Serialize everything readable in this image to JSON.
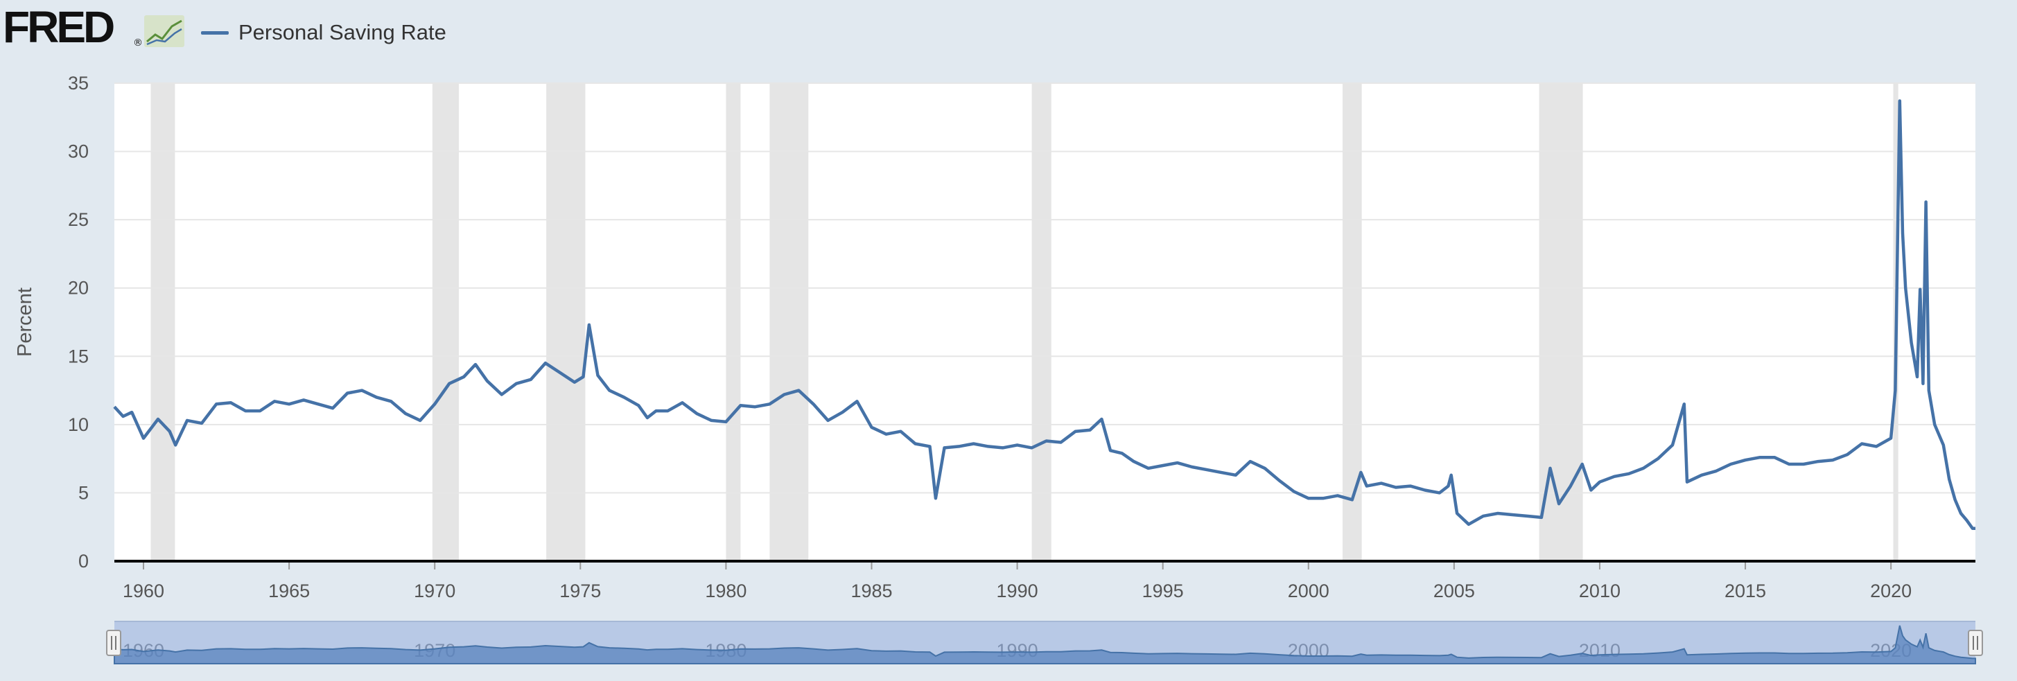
{
  "header": {
    "logo_text": "FRED",
    "logo_reg": "®",
    "logo_icon": "line-chart-logo-icon",
    "legend_label": "Personal Saving Rate"
  },
  "colors": {
    "series": "#4572a7",
    "recession": "#e5e5e5",
    "background": "#e1e9f0",
    "plot": "#ffffff",
    "navigator": "#b8c9e6"
  },
  "chart_data": {
    "type": "line",
    "title": "",
    "ylabel": "Percent",
    "xlabel": "",
    "x_range": [
      1959.0,
      2022.9
    ],
    "ylim": [
      0,
      35
    ],
    "y_ticks": [
      0,
      5,
      10,
      15,
      20,
      25,
      30,
      35
    ],
    "x_ticks": [
      1960,
      1965,
      1970,
      1975,
      1980,
      1985,
      1990,
      1995,
      2000,
      2005,
      2010,
      2015,
      2020
    ],
    "navigator_ticks": [
      1960,
      1970,
      1980,
      1990,
      2000,
      2010,
      2020
    ],
    "grid": true,
    "legend": "top-left",
    "recessions": [
      [
        1960.25,
        1961.08
      ],
      [
        1969.92,
        1970.83
      ],
      [
        1973.83,
        1975.17
      ],
      [
        1980.0,
        1980.5
      ],
      [
        1981.5,
        1982.83
      ],
      [
        1990.5,
        1991.17
      ],
      [
        2001.17,
        2001.83
      ],
      [
        2007.92,
        2009.42
      ],
      [
        2020.08,
        2020.25
      ]
    ],
    "series": [
      {
        "name": "Personal Saving Rate",
        "points": [
          [
            1959.0,
            11.3
          ],
          [
            1959.3,
            10.6
          ],
          [
            1959.6,
            10.9
          ],
          [
            1960.0,
            9.0
          ],
          [
            1960.5,
            10.4
          ],
          [
            1960.9,
            9.5
          ],
          [
            1961.1,
            8.5
          ],
          [
            1961.5,
            10.3
          ],
          [
            1962.0,
            10.1
          ],
          [
            1962.5,
            11.5
          ],
          [
            1963.0,
            11.6
          ],
          [
            1963.5,
            11.0
          ],
          [
            1964.0,
            11.0
          ],
          [
            1964.5,
            11.7
          ],
          [
            1965.0,
            11.5
          ],
          [
            1965.5,
            11.8
          ],
          [
            1966.0,
            11.5
          ],
          [
            1966.5,
            11.2
          ],
          [
            1967.0,
            12.3
          ],
          [
            1967.5,
            12.5
          ],
          [
            1968.0,
            12.0
          ],
          [
            1968.5,
            11.7
          ],
          [
            1969.0,
            10.8
          ],
          [
            1969.5,
            10.3
          ],
          [
            1970.0,
            11.5
          ],
          [
            1970.5,
            13.0
          ],
          [
            1971.0,
            13.5
          ],
          [
            1971.4,
            14.4
          ],
          [
            1971.8,
            13.2
          ],
          [
            1972.3,
            12.2
          ],
          [
            1972.8,
            13.0
          ],
          [
            1973.3,
            13.3
          ],
          [
            1973.8,
            14.5
          ],
          [
            1974.3,
            13.8
          ],
          [
            1974.8,
            13.1
          ],
          [
            1975.1,
            13.5
          ],
          [
            1975.3,
            17.3
          ],
          [
            1975.6,
            13.6
          ],
          [
            1976.0,
            12.5
          ],
          [
            1976.5,
            12.0
          ],
          [
            1977.0,
            11.4
          ],
          [
            1977.3,
            10.5
          ],
          [
            1977.6,
            11.0
          ],
          [
            1978.0,
            11.0
          ],
          [
            1978.5,
            11.6
          ],
          [
            1979.0,
            10.8
          ],
          [
            1979.5,
            10.3
          ],
          [
            1980.0,
            10.2
          ],
          [
            1980.5,
            11.4
          ],
          [
            1981.0,
            11.3
          ],
          [
            1981.5,
            11.5
          ],
          [
            1982.0,
            12.2
          ],
          [
            1982.5,
            12.5
          ],
          [
            1983.0,
            11.5
          ],
          [
            1983.5,
            10.3
          ],
          [
            1984.0,
            10.9
          ],
          [
            1984.5,
            11.7
          ],
          [
            1985.0,
            9.8
          ],
          [
            1985.5,
            9.3
          ],
          [
            1986.0,
            9.5
          ],
          [
            1986.5,
            8.6
          ],
          [
            1987.0,
            8.4
          ],
          [
            1987.2,
            4.6
          ],
          [
            1987.5,
            8.3
          ],
          [
            1988.0,
            8.4
          ],
          [
            1988.5,
            8.6
          ],
          [
            1989.0,
            8.4
          ],
          [
            1989.5,
            8.3
          ],
          [
            1990.0,
            8.5
          ],
          [
            1990.5,
            8.3
          ],
          [
            1991.0,
            8.8
          ],
          [
            1991.5,
            8.7
          ],
          [
            1992.0,
            9.5
          ],
          [
            1992.5,
            9.6
          ],
          [
            1992.9,
            10.4
          ],
          [
            1993.2,
            8.1
          ],
          [
            1993.6,
            7.9
          ],
          [
            1994.0,
            7.3
          ],
          [
            1994.5,
            6.8
          ],
          [
            1995.0,
            7.0
          ],
          [
            1995.5,
            7.2
          ],
          [
            1996.0,
            6.9
          ],
          [
            1996.5,
            6.7
          ],
          [
            1997.0,
            6.5
          ],
          [
            1997.5,
            6.3
          ],
          [
            1998.0,
            7.3
          ],
          [
            1998.5,
            6.8
          ],
          [
            1999.0,
            5.9
          ],
          [
            1999.5,
            5.1
          ],
          [
            2000.0,
            4.6
          ],
          [
            2000.5,
            4.6
          ],
          [
            2001.0,
            4.8
          ],
          [
            2001.5,
            4.5
          ],
          [
            2001.8,
            6.5
          ],
          [
            2002.0,
            5.5
          ],
          [
            2002.5,
            5.7
          ],
          [
            2003.0,
            5.4
          ],
          [
            2003.5,
            5.5
          ],
          [
            2004.0,
            5.2
          ],
          [
            2004.5,
            5.0
          ],
          [
            2004.8,
            5.5
          ],
          [
            2004.9,
            6.3
          ],
          [
            2005.1,
            3.5
          ],
          [
            2005.5,
            2.7
          ],
          [
            2006.0,
            3.3
          ],
          [
            2006.5,
            3.5
          ],
          [
            2007.0,
            3.4
          ],
          [
            2007.5,
            3.3
          ],
          [
            2008.0,
            3.2
          ],
          [
            2008.3,
            6.8
          ],
          [
            2008.6,
            4.2
          ],
          [
            2009.0,
            5.5
          ],
          [
            2009.4,
            7.1
          ],
          [
            2009.7,
            5.2
          ],
          [
            2010.0,
            5.8
          ],
          [
            2010.5,
            6.2
          ],
          [
            2011.0,
            6.4
          ],
          [
            2011.5,
            6.8
          ],
          [
            2012.0,
            7.5
          ],
          [
            2012.5,
            8.5
          ],
          [
            2012.9,
            11.5
          ],
          [
            2013.0,
            5.8
          ],
          [
            2013.5,
            6.3
          ],
          [
            2014.0,
            6.6
          ],
          [
            2014.5,
            7.1
          ],
          [
            2015.0,
            7.4
          ],
          [
            2015.5,
            7.6
          ],
          [
            2016.0,
            7.6
          ],
          [
            2016.5,
            7.1
          ],
          [
            2017.0,
            7.1
          ],
          [
            2017.5,
            7.3
          ],
          [
            2018.0,
            7.4
          ],
          [
            2018.5,
            7.8
          ],
          [
            2019.0,
            8.6
          ],
          [
            2019.5,
            8.4
          ],
          [
            2020.0,
            9.0
          ],
          [
            2020.15,
            12.5
          ],
          [
            2020.3,
            33.7
          ],
          [
            2020.4,
            24.0
          ],
          [
            2020.5,
            20.0
          ],
          [
            2020.7,
            16.0
          ],
          [
            2020.9,
            13.5
          ],
          [
            2021.0,
            19.9
          ],
          [
            2021.1,
            13.0
          ],
          [
            2021.2,
            26.3
          ],
          [
            2021.3,
            12.5
          ],
          [
            2021.5,
            10.0
          ],
          [
            2021.8,
            8.5
          ],
          [
            2022.0,
            6.0
          ],
          [
            2022.2,
            4.5
          ],
          [
            2022.4,
            3.5
          ],
          [
            2022.6,
            3.0
          ],
          [
            2022.8,
            2.4
          ],
          [
            2022.9,
            2.4
          ]
        ]
      }
    ]
  }
}
